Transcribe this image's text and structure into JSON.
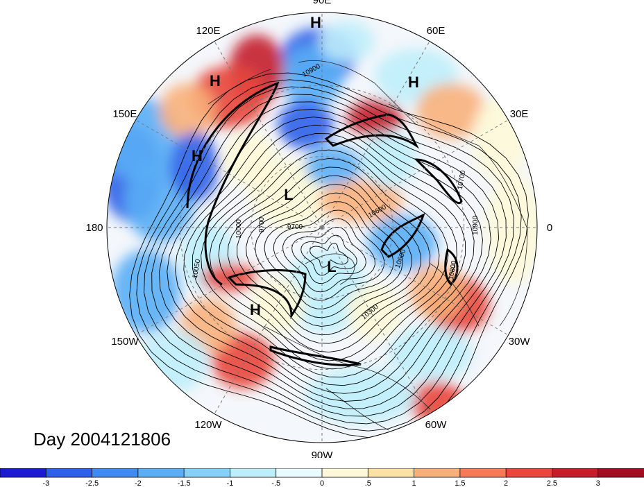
{
  "title": "Day 2004121806",
  "longitude_labels": [
    "90E",
    "60E",
    "30E",
    "0",
    "30W",
    "60W",
    "90W",
    "120W",
    "150W",
    "180",
    "150E",
    "120E"
  ],
  "pressure_centers": [
    "H",
    "H",
    "H",
    "H",
    "L",
    "L",
    "H"
  ],
  "contour_labels": [
    "10900",
    "10000",
    "9700",
    "9700",
    "10600",
    "10700",
    "10800",
    "10900",
    "10300",
    "10050",
    "10600"
  ],
  "colorbar": {
    "tick_labels": [
      "-3",
      "-2.5",
      "-2",
      "-1.5",
      "-1",
      "-.5",
      "0",
      ".5",
      "1",
      "1.5",
      "2",
      "2.5",
      "3"
    ],
    "colors": [
      "#1a1ad1",
      "#2d5fe8",
      "#3f8bf0",
      "#5aaef5",
      "#86d1f7",
      "#bfeefb",
      "#e9fbfe",
      "#fdf8d8",
      "#fbe1a4",
      "#f8b07a",
      "#f37b58",
      "#e8473c",
      "#c41e2b",
      "#a10e22"
    ]
  },
  "map_colors": {
    "deep_blue": "#2d5fe8",
    "blue": "#5aaef5",
    "light_blue": "#bfeefb",
    "neutral": "#f4f7fb",
    "light_yellow": "#fdf8d8",
    "orange": "#f8b07a",
    "red": "#e8473c",
    "dark_red": "#c41e2b"
  }
}
